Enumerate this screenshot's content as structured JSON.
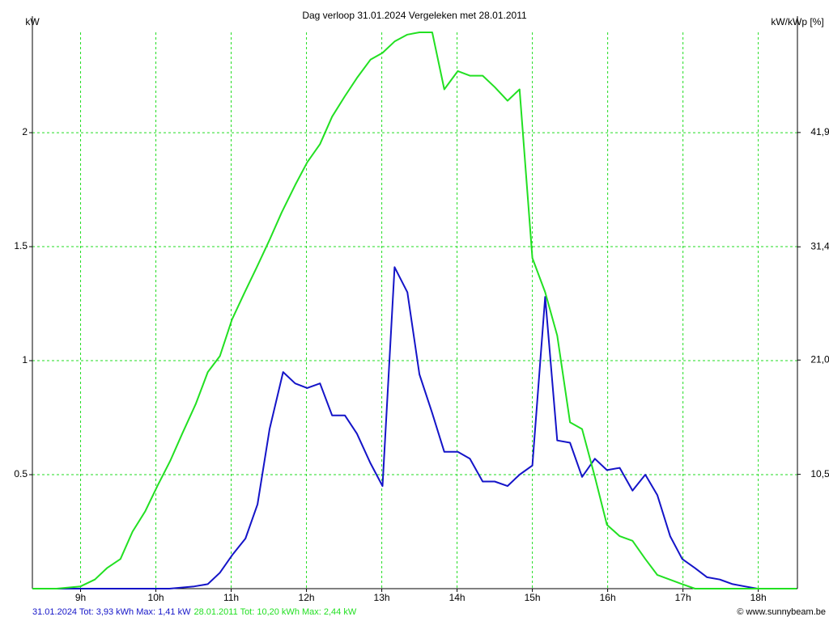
{
  "chart_data": {
    "type": "line",
    "title": "Dag  verloop 31.01.2024   Vergeleken met 28.01.2011",
    "y_label": "kW",
    "y2_label": "kW/kWp [%]",
    "credit": "© www.sunnybeam.be",
    "xlim": [
      8.36,
      18.52
    ],
    "xticks": [
      {
        "value": 9,
        "label": "9h"
      },
      {
        "value": 10,
        "label": "10h"
      },
      {
        "value": 11,
        "label": "11h"
      },
      {
        "value": 12,
        "label": "12h"
      },
      {
        "value": 13,
        "label": "13h"
      },
      {
        "value": 14,
        "label": "14h"
      },
      {
        "value": 15,
        "label": "15h"
      },
      {
        "value": 16,
        "label": "16h"
      },
      {
        "value": 17,
        "label": "17h"
      },
      {
        "value": 18,
        "label": "18h"
      }
    ],
    "ylim": [
      0,
      2.44
    ],
    "yticks": [
      0.5,
      1,
      1.5,
      2
    ],
    "y2lim": [
      0,
      51.1
    ],
    "y2ticks": [
      {
        "value": 10.5,
        "label": "10,5"
      },
      {
        "value": 21.0,
        "label": "21,0"
      },
      {
        "value": 31.4,
        "label": "31,4"
      },
      {
        "value": 41.9,
        "label": "41,9"
      }
    ],
    "grid": true,
    "series": [
      {
        "name": "31.01.2024 Tot: 3,93 kWh Max: 1,41 kW",
        "color": "#1414c8",
        "x": [
          8.36,
          9.7,
          10.18,
          10.51,
          10.69,
          10.85,
          11.02,
          11.19,
          11.35,
          11.51,
          11.69,
          11.85,
          12.01,
          12.18,
          12.34,
          12.51,
          12.67,
          12.85,
          13.01,
          13.17,
          13.34,
          13.5,
          13.67,
          13.83,
          14.01,
          14.17,
          14.34,
          14.5,
          14.67,
          14.83,
          15.0,
          15.17,
          15.33,
          15.5,
          15.66,
          15.83,
          15.99,
          16.16,
          16.33,
          16.5,
          16.66,
          16.83,
          16.99,
          17.16,
          17.32,
          17.49,
          17.66,
          17.82,
          17.99,
          18.51
        ],
        "values": [
          0,
          0,
          0,
          0.01,
          0.02,
          0.07,
          0.15,
          0.22,
          0.37,
          0.7,
          0.95,
          0.9,
          0.88,
          0.9,
          0.76,
          0.76,
          0.68,
          0.55,
          0.45,
          1.41,
          1.3,
          0.94,
          0.77,
          0.6,
          0.6,
          0.57,
          0.47,
          0.47,
          0.45,
          0.5,
          0.54,
          1.28,
          0.65,
          0.64,
          0.49,
          0.57,
          0.52,
          0.53,
          0.43,
          0.5,
          0.41,
          0.23,
          0.13,
          0.09,
          0.05,
          0.04,
          0.02,
          0.01,
          0,
          0
        ]
      },
      {
        "name": "28.01.2011 Tot: 10,20 kWh Max: 2,44 kW",
        "color": "#22e022",
        "x": [
          8.36,
          8.68,
          9.0,
          9.19,
          9.35,
          9.53,
          9.69,
          9.86,
          10.02,
          10.19,
          10.35,
          10.53,
          10.69,
          10.85,
          11.01,
          11.18,
          11.34,
          11.51,
          11.67,
          11.85,
          12.01,
          12.18,
          12.34,
          12.51,
          12.67,
          12.85,
          13.01,
          13.17,
          13.34,
          13.5,
          13.67,
          13.83,
          14.01,
          14.17,
          14.34,
          14.5,
          14.67,
          14.83,
          15.0,
          15.17,
          15.33,
          15.5,
          15.66,
          15.83,
          15.99,
          16.16,
          16.33,
          16.5,
          16.66,
          16.99,
          17.16,
          17.49,
          18.51
        ],
        "values": [
          0,
          0,
          0.01,
          0.04,
          0.09,
          0.13,
          0.25,
          0.34,
          0.45,
          0.56,
          0.68,
          0.81,
          0.95,
          1.02,
          1.18,
          1.3,
          1.41,
          1.53,
          1.65,
          1.77,
          1.87,
          1.95,
          2.07,
          2.16,
          2.24,
          2.32,
          2.35,
          2.4,
          2.43,
          2.44,
          2.44,
          2.19,
          2.27,
          2.25,
          2.25,
          2.2,
          2.14,
          2.19,
          1.45,
          1.3,
          1.11,
          0.73,
          0.7,
          0.49,
          0.28,
          0.23,
          0.21,
          0.13,
          0.06,
          0.02,
          0,
          0,
          0
        ]
      }
    ]
  }
}
